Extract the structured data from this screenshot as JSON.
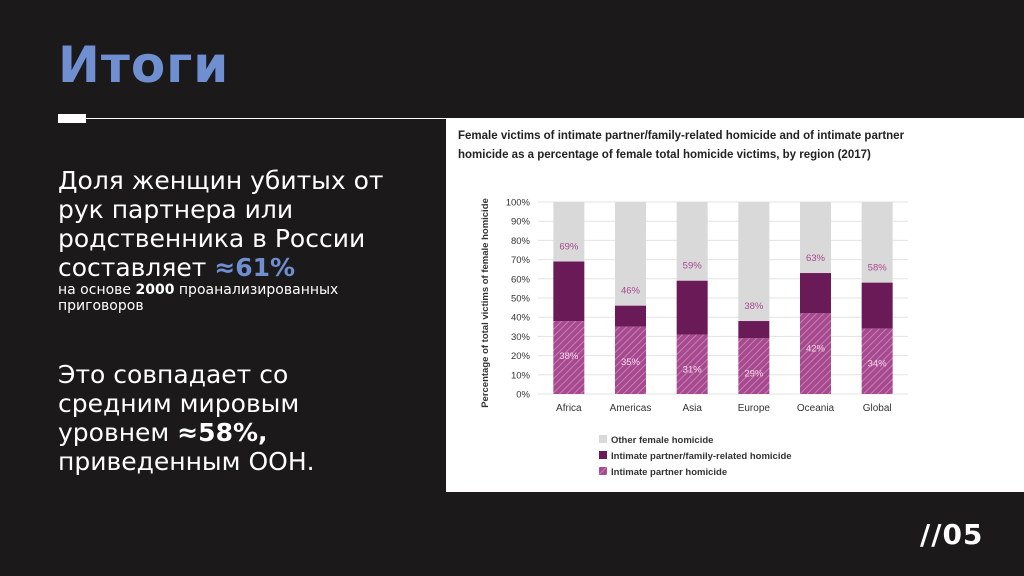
{
  "slide": {
    "title": "Итоги",
    "para1": {
      "line1": "Доля женщин убитых от",
      "line2": "рук партнера или",
      "line3": "родственника в России",
      "line4_prefix": "составляет ",
      "line4_value": "≈61%",
      "note_prefix": "на основе ",
      "note_number": "2000",
      "note_suffix": " проанализированных",
      "note_line2": "приговоров"
    },
    "para2": {
      "line1": "Это совпадает со",
      "line2": "средним мировым",
      "line3_prefix": "уровнем ",
      "line3_value": "≈58%,",
      "line4": "приведенным ООН."
    },
    "slide_number": "//05"
  },
  "chart_data": {
    "type": "bar",
    "title_line1": "Female victims of intimate partner/family-related homicide and of intimate partner",
    "title_line2": "homicide as a percentage of female total homicide victims, by region (2017)",
    "ylabel": "Percentage of total victims of female homicide",
    "xlabel": "",
    "ylim": [
      0,
      100
    ],
    "yticks": [
      "0%",
      "10%",
      "20%",
      "30%",
      "40%",
      "50%",
      "60%",
      "70%",
      "80%",
      "90%",
      "100%"
    ],
    "categories": [
      "Africa",
      "Americas",
      "Asia",
      "Europe",
      "Oceania",
      "Global"
    ],
    "series": [
      {
        "name": "Intimate partner homicide",
        "values": [
          38,
          35,
          31,
          29,
          42,
          34
        ],
        "labels": [
          "38%",
          "35%",
          "31%",
          "29%",
          "42%",
          "34%"
        ]
      },
      {
        "name": "Intimate partner/family-related homicide",
        "values": [
          69,
          46,
          59,
          38,
          63,
          58
        ],
        "labels": [
          "69%",
          "46%",
          "59%",
          "38%",
          "63%",
          "58%"
        ]
      },
      {
        "name": "Other female homicide",
        "values": [
          100,
          100,
          100,
          100,
          100,
          100
        ]
      }
    ],
    "legend": [
      {
        "name": "Other female homicide",
        "color": "#d9d9d9"
      },
      {
        "name": "Intimate partner/family-related homicide",
        "color": "#6b1a58"
      },
      {
        "name": "Intimate partner homicide",
        "color": "#a8498f"
      }
    ],
    "legend_position": "bottom-left",
    "colors": {
      "other": "#d9d9d9",
      "family": "#6b1a58",
      "partner": "#a8498f",
      "label": "#a8498f"
    }
  }
}
